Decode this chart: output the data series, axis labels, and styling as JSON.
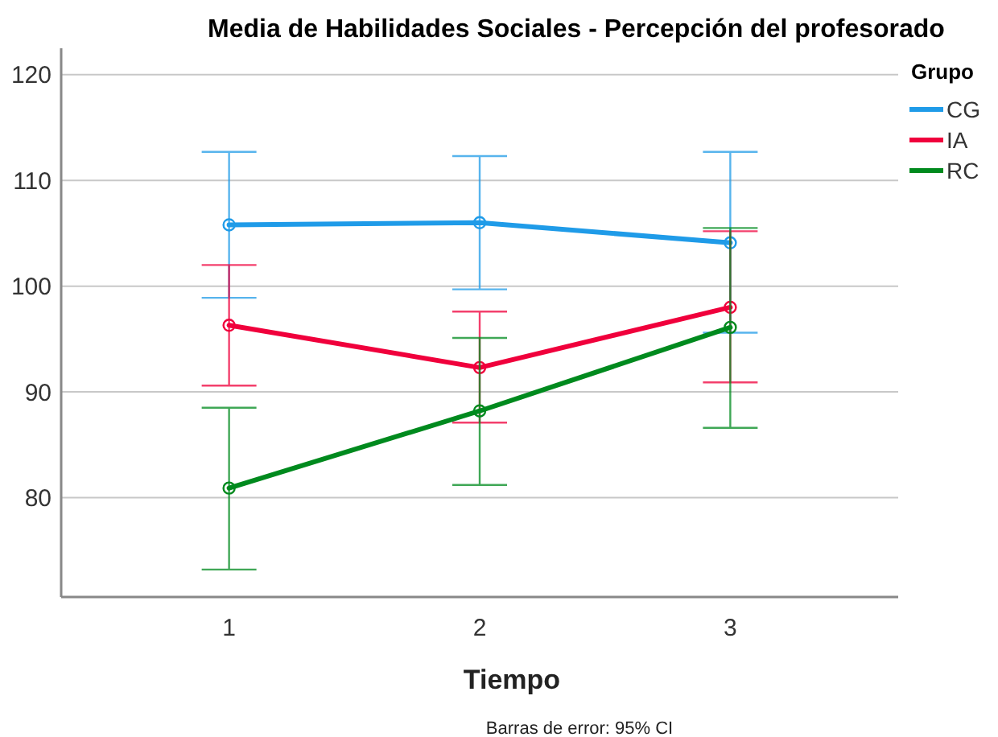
{
  "chart_data": {
    "type": "line",
    "title": "Media de Habilidades Sociales - Percepción del profesorado",
    "xlabel": "Tiempo",
    "legend_title": "Grupo",
    "annotations": [
      "Barras de error: 95% CI"
    ],
    "x": [
      1,
      2,
      3
    ],
    "xlim": [
      0.33,
      3.67
    ],
    "xticks": [
      1,
      2,
      3
    ],
    "ylim": [
      70.6,
      122.5
    ],
    "yticks": [
      80,
      90,
      100,
      110,
      120
    ],
    "grid": "y",
    "legend": "top right",
    "marker": "circle",
    "line_style": "solid",
    "series": [
      {
        "name": "CG",
        "color": "#1f9be8",
        "values": [
          105.8,
          106.0,
          104.1
        ],
        "errors": [
          [
            98.9,
            112.7
          ],
          [
            99.7,
            112.3
          ],
          [
            95.6,
            112.7
          ]
        ]
      },
      {
        "name": "IA",
        "color": "#f0003c",
        "values": [
          96.3,
          92.3,
          98.0
        ],
        "errors": [
          [
            90.6,
            102.0
          ],
          [
            87.1,
            97.6
          ],
          [
            90.9,
            105.2
          ]
        ]
      },
      {
        "name": "RC",
        "color": "#008a1e",
        "values": [
          80.9,
          88.2,
          96.1
        ],
        "errors": [
          [
            73.2,
            88.5
          ],
          [
            81.2,
            95.1
          ],
          [
            86.6,
            105.5
          ]
        ]
      }
    ]
  }
}
